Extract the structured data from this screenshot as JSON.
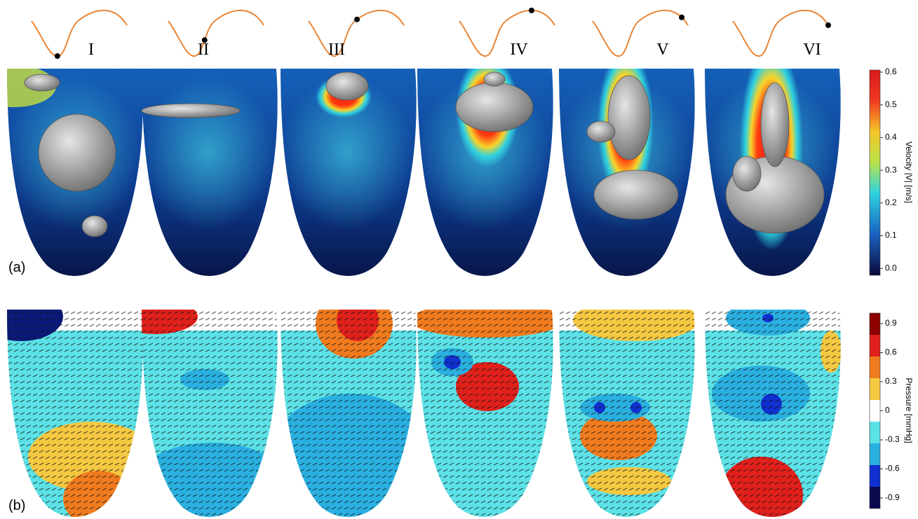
{
  "figure": {
    "phases": [
      "I",
      "II",
      "III",
      "IV",
      "V",
      "VI"
    ],
    "row_labels": [
      "(a)",
      "(b)"
    ],
    "velocity_colorbar": {
      "label": "Velocity |V| [m/s]",
      "ticks": [
        "0.6",
        "0.5",
        "0.4",
        "0.3",
        "0.2",
        "0.1",
        "0.0"
      ]
    },
    "pressure_colorbar": {
      "label": "Pressure [mmHg]",
      "ticks": [
        "0.9",
        "0.6",
        "0.3",
        "0",
        "-0.3",
        "-0.6",
        "-0.9"
      ]
    }
  }
}
